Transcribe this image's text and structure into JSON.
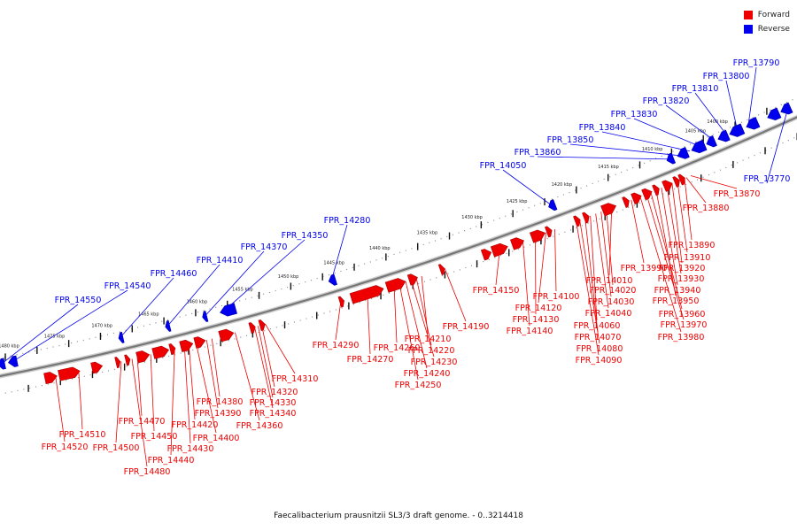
{
  "legend": [
    {
      "label": "Forward",
      "color": "#ee0000"
    },
    {
      "label": "Reverse",
      "color": "#0000ee"
    }
  ],
  "caption": "Faecalibacterium prausnitzii SL3/3 draft genome. - 0..3214418",
  "colors": {
    "forward": "#ee0000",
    "reverse": "#0000ee",
    "backbone": "#777777"
  },
  "ticks": [
    "1400 kbp",
    "1405 kbp",
    "1410 kbp",
    "1415 kbp",
    "1420 kbp",
    "1425 kbp",
    "1430 kbp",
    "1435 kbp",
    "1440 kbp",
    "1445 kbp",
    "1450 kbp",
    "1455 kbp",
    "1460 kbp",
    "1465 kbp",
    "1470 kbp",
    "1475 kbp",
    "1480 kbp"
  ],
  "forward_genes": [
    "FPR_13870",
    "FPR_13880",
    "FPR_13890",
    "FPR_13910",
    "FPR_13920",
    "FPR_13930",
    "FPR_13940",
    "FPR_13950",
    "FPR_13960",
    "FPR_13970",
    "FPR_13980",
    "FPR_13990",
    "FPR_14010",
    "FPR_14020",
    "FPR_14030",
    "FPR_14040",
    "FPR_14060",
    "FPR_14070",
    "FPR_14080",
    "FPR_14090",
    "FPR_14100",
    "FPR_14120",
    "FPR_14130",
    "FPR_14140",
    "FPR_14150",
    "FPR_14190",
    "FPR_14210",
    "FPR_14220",
    "FPR_14230",
    "FPR_14240",
    "FPR_14250",
    "FPR_14260",
    "FPR_14270",
    "FPR_14290",
    "FPR_14310",
    "FPR_14320",
    "FPR_14330",
    "FPR_14340",
    "FPR_14360",
    "FPR_14380",
    "FPR_14390",
    "FPR_14400",
    "FPR_14420",
    "FPR_14430",
    "FPR_14440",
    "FPR_14450",
    "FPR_14470",
    "FPR_14480",
    "FPR_14500",
    "FPR_14510",
    "FPR_14520"
  ],
  "reverse_genes": [
    "FPR_13790",
    "FPR_13800",
    "FPR_13810",
    "FPR_13820",
    "FPR_13830",
    "FPR_13840",
    "FPR_13850",
    "FPR_13860",
    "FPR_14050",
    "FPR_14280",
    "FPR_14350",
    "FPR_14370",
    "FPR_14410",
    "FPR_14460",
    "FPR_14540",
    "FPR_14550",
    "FPR_13770"
  ]
}
